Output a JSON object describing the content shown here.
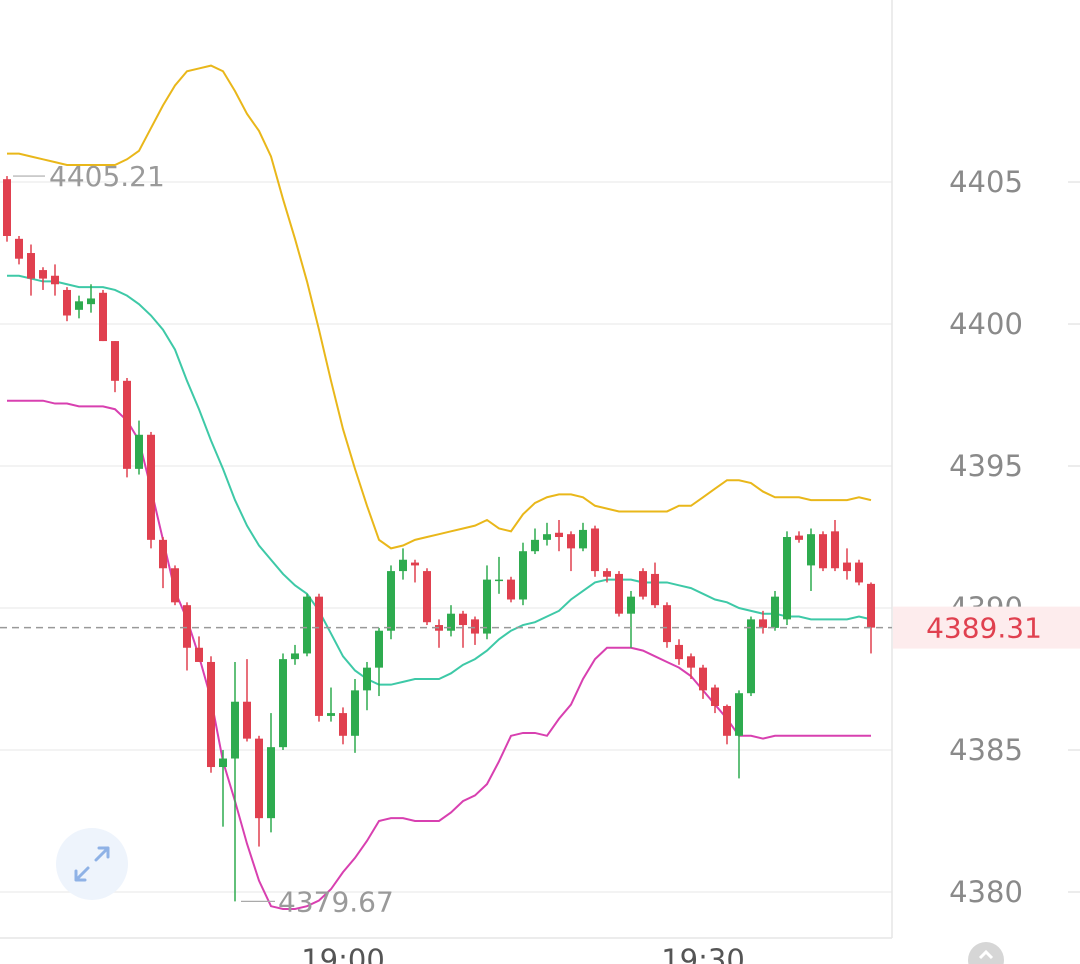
{
  "chart_data": {
    "type": "candlestick",
    "categories": [
      null,
      null,
      null,
      null,
      null,
      null,
      null,
      null,
      null,
      null,
      null,
      null,
      null,
      null,
      null,
      null,
      null,
      null,
      null,
      null,
      null,
      null,
      null,
      null,
      null,
      null,
      null,
      null,
      "19:00",
      null,
      null,
      null,
      null,
      null,
      null,
      null,
      null,
      null,
      null,
      null,
      null,
      null,
      null,
      null,
      null,
      null,
      null,
      null,
      null,
      null,
      null,
      null,
      null,
      null,
      null,
      null,
      null,
      null,
      "19:30",
      null,
      null,
      null,
      null,
      null,
      null,
      null,
      null,
      null,
      null,
      null,
      null,
      null,
      null
    ],
    "open": [
      4405.1,
      4403.0,
      4402.5,
      4401.9,
      4401.7,
      4401.2,
      4400.5,
      4400.7,
      4401.1,
      4399.4,
      4398.0,
      4394.9,
      4396.1,
      4392.4,
      4391.4,
      4390.1,
      4388.6,
      4388.1,
      4384.4,
      4384.7,
      4386.7,
      4385.4,
      4382.6,
      4385.1,
      4388.2,
      4388.4,
      4390.4,
      4386.2,
      4386.3,
      4385.5,
      4387.1,
      4387.9,
      4389.2,
      4391.3,
      4391.6,
      4391.3,
      4389.4,
      4389.2,
      4389.8,
      4389.6,
      4389.1,
      4390.95,
      4391.0,
      4390.3,
      4392.0,
      4392.4,
      4392.65,
      4392.6,
      4392.1,
      4392.8,
      4391.3,
      4391.2,
      4389.8,
      4391.3,
      4391.2,
      4390.1,
      4388.7,
      4388.3,
      4387.9,
      4387.2,
      4386.55,
      4385.5,
      4387.0,
      4389.6,
      4389.3,
      4389.6,
      4392.55,
      4391.5,
      4392.6,
      4392.7,
      4391.6,
      4391.6,
      4390.85
    ],
    "high": [
      4405.21,
      4403.1,
      4402.8,
      4402.0,
      4402.1,
      4401.3,
      4401.0,
      4401.4,
      4401.2,
      4399.4,
      4398.1,
      4396.6,
      4396.2,
      4392.5,
      4391.5,
      4390.2,
      4389.0,
      4388.3,
      4385.0,
      4388.1,
      4388.2,
      4385.5,
      4386.3,
      4388.4,
      4388.7,
      4390.5,
      4390.5,
      4387.2,
      4386.5,
      4387.5,
      4388.1,
      4389.3,
      4391.5,
      4392.1,
      4391.7,
      4391.4,
      4389.6,
      4390.1,
      4389.9,
      4389.7,
      4391.5,
      4391.8,
      4391.1,
      4392.3,
      4392.8,
      4393.0,
      4393.1,
      4392.7,
      4393.0,
      4392.9,
      4391.4,
      4391.3,
      4390.6,
      4391.4,
      4391.6,
      4390.2,
      4388.9,
      4388.4,
      4388.0,
      4387.3,
      4386.6,
      4387.1,
      4389.7,
      4389.9,
      4390.6,
      4392.7,
      4392.7,
      4392.8,
      4392.7,
      4393.1,
      4392.1,
      4391.7,
      4390.9
    ],
    "low": [
      4402.9,
      4402.1,
      4401.0,
      4401.2,
      4401.0,
      4400.1,
      4400.2,
      4400.4,
      4399.4,
      4397.6,
      4394.6,
      4394.7,
      4392.1,
      4390.7,
      4390.1,
      4387.8,
      4388.1,
      4384.2,
      4382.3,
      4379.67,
      4385.3,
      4381.6,
      4382.1,
      4385.0,
      4388.0,
      4388.3,
      4386.0,
      4386.0,
      4385.2,
      4384.9,
      4386.4,
      4386.9,
      4388.9,
      4391.0,
      4390.9,
      4389.4,
      4388.6,
      4389.0,
      4388.6,
      4388.7,
      4388.9,
      4390.5,
      4390.2,
      4390.1,
      4391.9,
      4392.2,
      4392.0,
      4391.3,
      4392.0,
      4391.1,
      4390.9,
      4389.7,
      4388.6,
      4390.3,
      4390.0,
      4388.6,
      4388.0,
      4387.5,
      4386.8,
      4386.3,
      4385.2,
      4384.0,
      4386.9,
      4389.1,
      4389.2,
      4389.4,
      4392.3,
      4390.6,
      4391.3,
      4391.3,
      4391.0,
      4390.8,
      4388.4
    ],
    "close": [
      4403.1,
      4402.3,
      4401.6,
      4401.6,
      4401.4,
      4400.3,
      4400.8,
      4400.9,
      4399.4,
      4398.0,
      4394.9,
      4396.1,
      4392.4,
      4391.4,
      4390.2,
      4388.6,
      4388.1,
      4384.4,
      4384.7,
      4386.7,
      4385.4,
      4382.6,
      4385.1,
      4388.2,
      4388.4,
      4390.4,
      4386.2,
      4386.3,
      4385.5,
      4387.1,
      4387.9,
      4389.2,
      4391.3,
      4391.7,
      4391.5,
      4389.5,
      4389.2,
      4389.8,
      4389.4,
      4389.1,
      4391.0,
      4391.0,
      4390.3,
      4392.0,
      4392.4,
      4392.6,
      4392.5,
      4392.1,
      4392.75,
      4391.3,
      4391.1,
      4389.8,
      4390.4,
      4390.4,
      4390.1,
      4388.8,
      4388.2,
      4387.9,
      4387.1,
      4386.55,
      4385.5,
      4387.0,
      4389.6,
      4389.3,
      4390.4,
      4392.5,
      4392.4,
      4392.6,
      4391.4,
      4391.4,
      4391.3,
      4390.9,
      4389.31
    ],
    "up_color": "#2eab4f",
    "down_color": "#e0404f",
    "lines": [
      {
        "color": "#e9b71a",
        "values": [
          4406.0,
          4406.0,
          4405.9,
          4405.8,
          4405.7,
          4405.6,
          4405.6,
          4405.6,
          4405.6,
          4405.6,
          4405.8,
          4406.1,
          4406.9,
          4407.7,
          4408.4,
          4408.9,
          4409.0,
          4409.1,
          4408.9,
          4408.2,
          4407.4,
          4406.8,
          4405.9,
          4404.4,
          4403.0,
          4401.5,
          4399.8,
          4398.0,
          4396.3,
          4394.9,
          4393.6,
          4392.4,
          4392.1,
          4392.2,
          4392.4,
          4392.5,
          4392.6,
          4392.7,
          4392.8,
          4392.9,
          4393.1,
          4392.8,
          4392.7,
          4393.3,
          4393.7,
          4393.9,
          4394.0,
          4394.0,
          4393.9,
          4393.6,
          4393.5,
          4393.4,
          4393.4,
          4393.4,
          4393.4,
          4393.4,
          4393.6,
          4393.6,
          4393.9,
          4394.2,
          4394.5,
          4394.5,
          4394.4,
          4394.1,
          4393.9,
          4393.9,
          4393.9,
          4393.8,
          4393.8,
          4393.8,
          4393.8,
          4393.9,
          4393.8
        ]
      },
      {
        "color": "#3ec9a7",
        "values": [
          4401.7,
          4401.7,
          4401.6,
          4401.5,
          4401.5,
          4401.4,
          4401.3,
          4401.3,
          4401.3,
          4401.2,
          4401.0,
          4400.7,
          4400.3,
          4399.8,
          4399.1,
          4398.0,
          4397.0,
          4395.9,
          4394.9,
          4393.8,
          4392.9,
          4392.2,
          4391.7,
          4391.2,
          4390.8,
          4390.5,
          4389.9,
          4389.1,
          4388.3,
          4387.8,
          4387.5,
          4387.3,
          4387.3,
          4387.4,
          4387.5,
          4387.5,
          4387.5,
          4387.7,
          4388.0,
          4388.2,
          4388.5,
          4388.9,
          4389.2,
          4389.4,
          4389.5,
          4389.7,
          4389.9,
          4390.3,
          4390.6,
          4390.9,
          4391.0,
          4391.0,
          4391.0,
          4390.9,
          4390.9,
          4390.9,
          4390.8,
          4390.7,
          4390.5,
          4390.3,
          4390.2,
          4390.0,
          4389.9,
          4389.8,
          4389.8,
          4389.7,
          4389.7,
          4389.6,
          4389.6,
          4389.6,
          4389.6,
          4389.7,
          4389.6
        ]
      },
      {
        "color": "#d840b0",
        "values": [
          4397.3,
          4397.3,
          4397.3,
          4397.3,
          4397.2,
          4397.2,
          4397.1,
          4397.1,
          4397.1,
          4397.0,
          4396.6,
          4395.9,
          4394.2,
          4392.4,
          4390.6,
          4389.6,
          4388.3,
          4386.8,
          4384.6,
          4383.2,
          4381.7,
          4380.4,
          4379.5,
          4379.4,
          4379.4,
          4379.5,
          4379.7,
          4380.1,
          4380.7,
          4381.2,
          4381.8,
          4382.5,
          4382.6,
          4382.6,
          4382.5,
          4382.5,
          4382.5,
          4382.8,
          4383.2,
          4383.4,
          4383.8,
          4384.6,
          4385.5,
          4385.6,
          4385.6,
          4385.5,
          4386.1,
          4386.6,
          4387.5,
          4388.2,
          4388.6,
          4388.6,
          4388.6,
          4388.5,
          4388.3,
          4388.1,
          4387.9,
          4387.6,
          4387.1,
          4386.6,
          4386.1,
          4385.5,
          4385.5,
          4385.4,
          4385.5,
          4385.5,
          4385.5,
          4385.5,
          4385.5,
          4385.5,
          4385.5,
          4385.5,
          4385.5
        ]
      }
    ],
    "ylim": [
      4378.38,
      4411.41
    ],
    "yticks": [
      4380,
      4385,
      4390,
      4395,
      4400,
      4405
    ],
    "grid": true,
    "last_price_color": "#e0404f"
  }
}
